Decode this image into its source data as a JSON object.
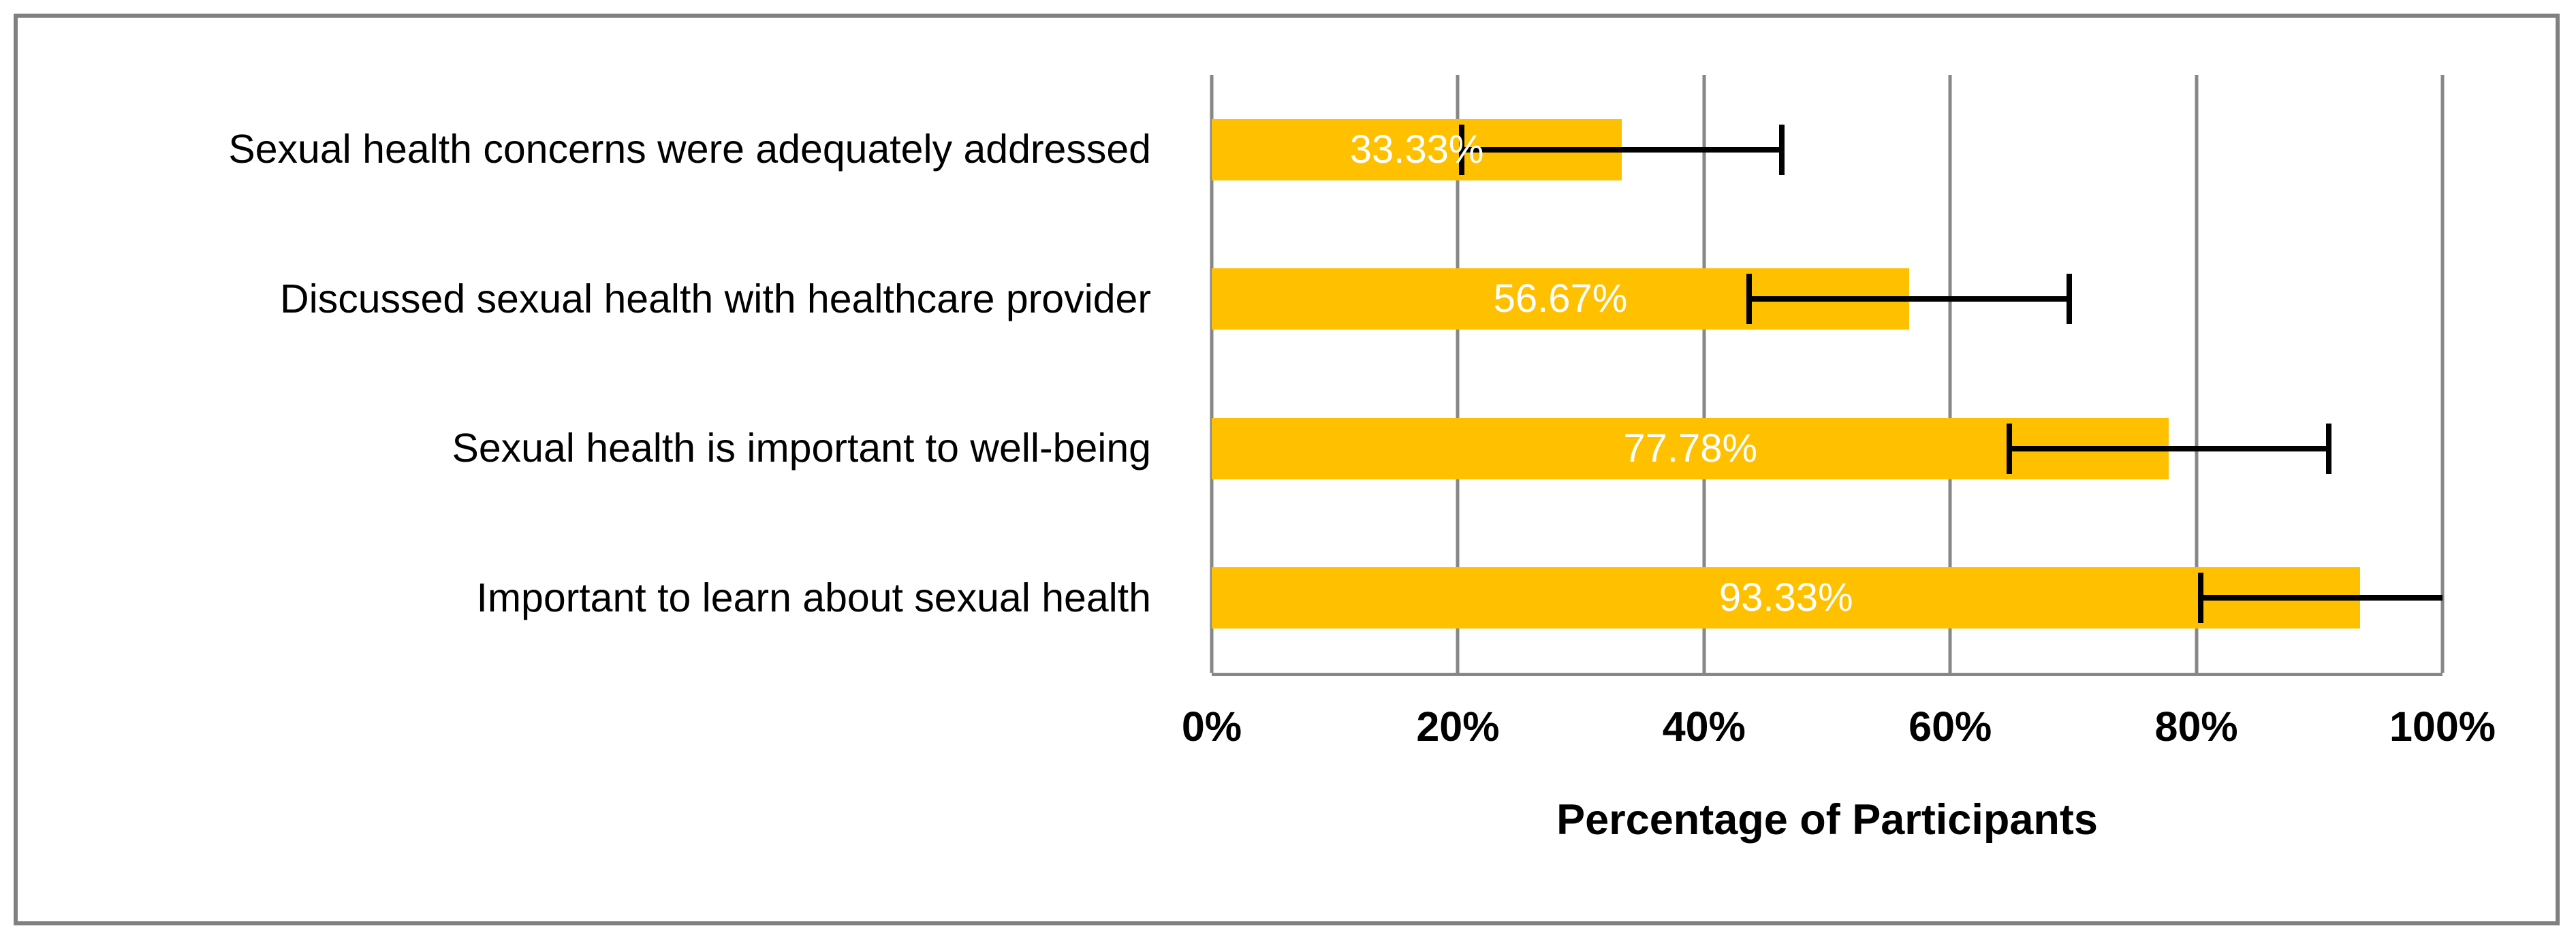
{
  "chart_data": {
    "type": "bar",
    "orientation": "horizontal",
    "title": "",
    "xlabel": "Percentage of Participants",
    "ylabel": "",
    "xlim": [
      0,
      100
    ],
    "grid": "vertical",
    "legend": "none",
    "categories": [
      "Sexual health concerns were adequately addressed",
      "Discussed sexual health with healthcare provider",
      "Sexual health is important to well-being",
      "Important to learn about sexual health"
    ],
    "values": [
      33.33,
      56.67,
      77.78,
      93.33
    ],
    "value_labels": [
      "33.33%",
      "56.67%",
      "77.78%",
      "93.33%"
    ],
    "error_minus": [
      13,
      13,
      13,
      13
    ],
    "error_plus": [
      13,
      13,
      13,
      13
    ],
    "error_clip_max": 100,
    "ticks": [
      {
        "v": 0,
        "label": "0%"
      },
      {
        "v": 20,
        "label": "20%"
      },
      {
        "v": 40,
        "label": "40%"
      },
      {
        "v": 60,
        "label": "60%"
      },
      {
        "v": 80,
        "label": "80%"
      },
      {
        "v": 100,
        "label": "100%"
      }
    ],
    "colors": {
      "bar": "#FFC000",
      "value_label": "#FFFFFF",
      "grid": "#878787",
      "axis_line": "#878787",
      "error_bar": "#000000",
      "text": "#000000",
      "figure_border": "#808080"
    }
  }
}
